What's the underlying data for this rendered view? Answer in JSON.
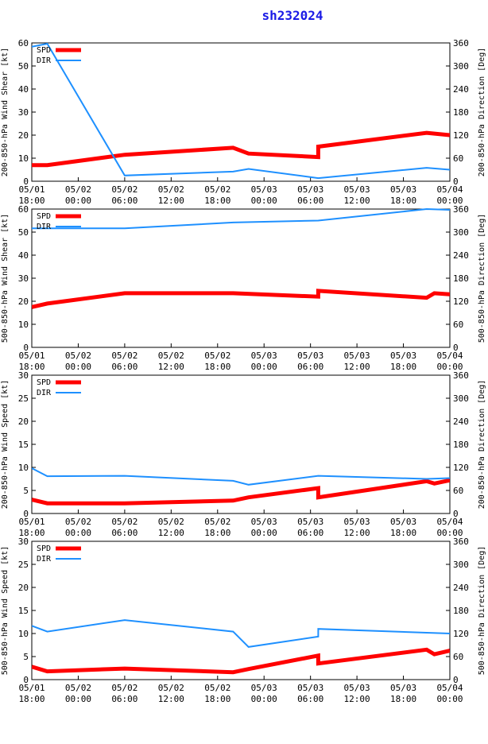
{
  "title": "sh232024",
  "x_ticks": [
    {
      "day": "05/01",
      "time": "18:00"
    },
    {
      "day": "05/02",
      "time": "00:00"
    },
    {
      "day": "05/02",
      "time": "06:00"
    },
    {
      "day": "05/02",
      "time": "12:00"
    },
    {
      "day": "05/02",
      "time": "18:00"
    },
    {
      "day": "05/03",
      "time": "00:00"
    },
    {
      "day": "05/03",
      "time": "06:00"
    },
    {
      "day": "05/03",
      "time": "12:00"
    },
    {
      "day": "05/03",
      "time": "18:00"
    },
    {
      "day": "05/04",
      "time": "00:00"
    }
  ],
  "colors": {
    "spd": "#ff0000",
    "dir": "#1e90ff",
    "title": "#1a1ae6"
  },
  "chart_data": [
    {
      "type": "line",
      "ylabel_left": "200-850-hPa Wind Shear [kt]",
      "ylabel_right": "200-850-hPa Direction [Deg]",
      "ylim_left": [
        0,
        60
      ],
      "ylim_right": [
        0,
        360
      ],
      "yticks_left": [
        0,
        10,
        20,
        30,
        40,
        50,
        60
      ],
      "yticks_right": [
        0,
        60,
        120,
        180,
        240,
        300,
        360
      ],
      "xlim_hours": [
        0,
        54
      ],
      "legend": "top-left",
      "series": [
        {
          "name": "SPD",
          "axis": "left",
          "x": [
            0,
            2,
            12,
            26,
            28,
            37,
            37,
            51,
            54
          ],
          "y": [
            7,
            7,
            11.5,
            14.5,
            12,
            10.5,
            15,
            21,
            20
          ]
        },
        {
          "name": "DIR",
          "axis": "right",
          "x": [
            0,
            2,
            12,
            26,
            28,
            37,
            51,
            54
          ],
          "y": [
            350,
            358,
            15,
            25,
            32,
            8,
            35,
            30
          ]
        }
      ]
    },
    {
      "type": "line",
      "ylabel_left": "500-850-hPa Wind Shear [kt]",
      "ylabel_right": "500-850-hPa Direction [Deg]",
      "ylim_left": [
        0,
        60
      ],
      "ylim_right": [
        0,
        360
      ],
      "yticks_left": [
        0,
        10,
        20,
        30,
        40,
        50,
        60
      ],
      "yticks_right": [
        0,
        60,
        120,
        180,
        240,
        300,
        360
      ],
      "xlim_hours": [
        0,
        54
      ],
      "legend": "top-left",
      "series": [
        {
          "name": "SPD",
          "axis": "left",
          "x": [
            0,
            2,
            12,
            26,
            37,
            37,
            51,
            52,
            54
          ],
          "y": [
            17.5,
            19,
            23.5,
            23.5,
            22,
            24.5,
            21.5,
            23.5,
            23
          ]
        },
        {
          "name": "DIR",
          "axis": "right",
          "x": [
            0,
            2,
            12,
            26,
            37,
            51,
            54
          ],
          "y": [
            310,
            310,
            310,
            325,
            330,
            360,
            358
          ]
        }
      ]
    },
    {
      "type": "line",
      "ylabel_left": "200-850-hPa Wind Speed [kt]",
      "ylabel_right": "200-850-hPa Direction [Deg]",
      "ylim_left": [
        0,
        30
      ],
      "ylim_right": [
        0,
        360
      ],
      "yticks_left": [
        0,
        5,
        10,
        15,
        20,
        25,
        30
      ],
      "yticks_right": [
        0,
        60,
        120,
        180,
        240,
        300,
        360
      ],
      "xlim_hours": [
        0,
        54
      ],
      "legend": "top-left",
      "series": [
        {
          "name": "SPD",
          "axis": "left",
          "x": [
            0,
            2,
            12,
            26,
            28,
            37,
            37,
            51,
            52,
            54
          ],
          "y": [
            3,
            2.2,
            2.2,
            2.8,
            3.5,
            5.5,
            3.5,
            7,
            6.5,
            7.2
          ]
        },
        {
          "name": "DIR",
          "axis": "right",
          "x": [
            0,
            2,
            12,
            26,
            28,
            37,
            51,
            54
          ],
          "y": [
            118,
            97,
            98,
            85,
            75,
            98,
            90,
            92
          ]
        }
      ]
    },
    {
      "type": "line",
      "ylabel_left": "500-850-hPa Wind Speed [kt]",
      "ylabel_right": "500-850-hPa Direction [Deg]",
      "ylim_left": [
        0,
        30
      ],
      "ylim_right": [
        0,
        360
      ],
      "yticks_left": [
        0,
        5,
        10,
        15,
        20,
        25,
        30
      ],
      "yticks_right": [
        0,
        60,
        120,
        180,
        240,
        300,
        360
      ],
      "xlim_hours": [
        0,
        54
      ],
      "legend": "top-left",
      "series": [
        {
          "name": "SPD",
          "axis": "left",
          "x": [
            0,
            2,
            12,
            26,
            28,
            37,
            37,
            51,
            52,
            54
          ],
          "y": [
            2.8,
            1.8,
            2.4,
            1.6,
            2.3,
            5.2,
            3.5,
            6.5,
            5.5,
            6.3
          ]
        },
        {
          "name": "DIR",
          "axis": "right",
          "x": [
            0,
            2,
            12,
            26,
            28,
            37,
            37,
            51,
            54
          ],
          "y": [
            140,
            125,
            155,
            125,
            85,
            112,
            132,
            122,
            120
          ]
        }
      ]
    }
  ]
}
